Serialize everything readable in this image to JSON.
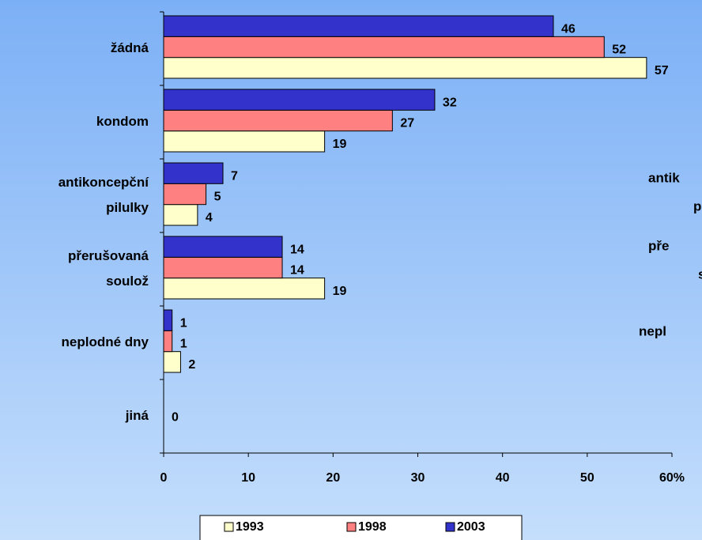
{
  "chart_data": {
    "type": "hbar",
    "categories": [
      [
        "žádná"
      ],
      [
        "kondom"
      ],
      [
        "antikoncepční",
        "pilulky"
      ],
      [
        "přerušovaná",
        "soulož"
      ],
      [
        "neplodné dny"
      ],
      [
        "jiná"
      ]
    ],
    "series": [
      {
        "name": "1993",
        "color": "#ffffcc",
        "values": [
          57,
          19,
          4,
          19,
          2,
          null
        ]
      },
      {
        "name": "1998",
        "color": "#ff8080",
        "values": [
          52,
          27,
          5,
          14,
          1,
          0
        ]
      },
      {
        "name": "2003",
        "color": "#3333cc",
        "values": [
          46,
          32,
          7,
          14,
          1,
          null
        ]
      }
    ],
    "xlim": [
      0,
      60
    ],
    "xticks": [
      0,
      10,
      20,
      30,
      40,
      50,
      {
        "value": 60,
        "label": "60%"
      }
    ],
    "legend": "bottom",
    "ghost_labels": [
      "antik",
      "p",
      "pře",
      "s",
      "nepl"
    ]
  }
}
